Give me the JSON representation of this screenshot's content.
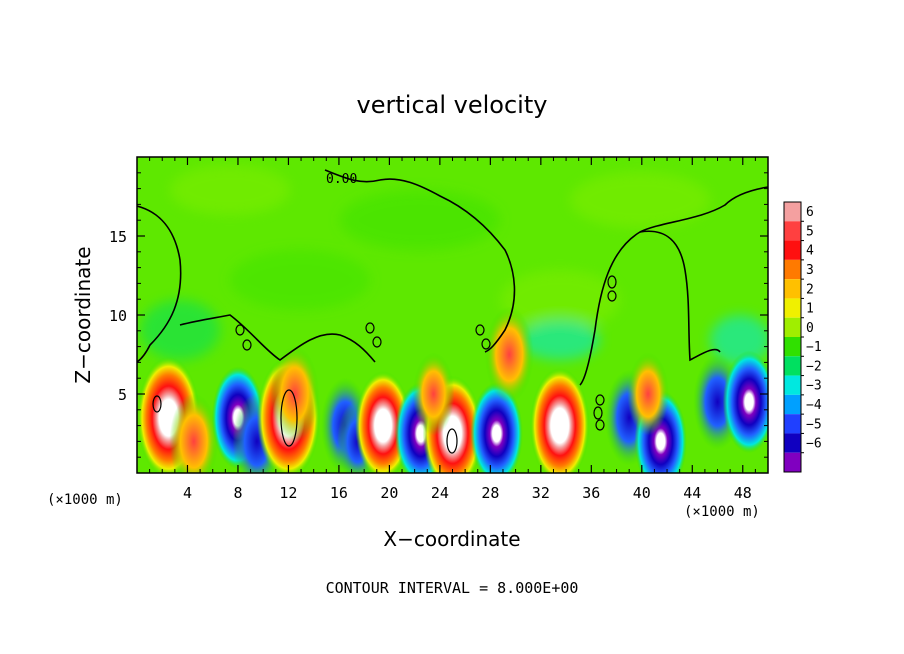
{
  "chart_data": {
    "type": "heatmap",
    "title": "vertical velocity",
    "xlabel": "X−coordinate",
    "ylabel": "Z−coordinate",
    "x_unit_left": "(×1000 m)",
    "x_unit_right": "(×1000 m)",
    "footer": "CONTOUR INTERVAL = 8.000E+00",
    "contour_label": "0.00",
    "xlim": [
      0,
      50
    ],
    "ylim": [
      0,
      20
    ],
    "x_ticks": [
      "4",
      "8",
      "12",
      "16",
      "20",
      "24",
      "28",
      "32",
      "36",
      "40",
      "44",
      "48"
    ],
    "y_ticks": [
      "5",
      "10",
      "15"
    ],
    "colorbar": {
      "range": [
        -6,
        6
      ],
      "labels": [
        "6",
        "5",
        "4",
        "3",
        "2",
        "1",
        "0",
        "−1",
        "−2",
        "−3",
        "−4",
        "−5",
        "−6"
      ],
      "colors": [
        "#f4a0a0",
        "#ff4040",
        "#ff1010",
        "#ff7a00",
        "#ffc000",
        "#f0f000",
        "#a0ee00",
        "#30e000",
        "#00e060",
        "#00e8e0",
        "#00a0ff",
        "#2040ff",
        "#1000c0",
        "#8000c0"
      ]
    },
    "cells": [
      {
        "x": 2.5,
        "z": 3.5,
        "w": 6,
        "kind": "up"
      },
      {
        "x": 4.5,
        "z": 2,
        "w": 4,
        "kind": "up"
      },
      {
        "x": 8,
        "z": 3.5,
        "w": -4.5,
        "kind": "down"
      },
      {
        "x": 9.5,
        "z": 2,
        "w": -4,
        "kind": "down"
      },
      {
        "x": 12,
        "z": 3.5,
        "w": 6,
        "kind": "up"
      },
      {
        "x": 12.5,
        "z": 5,
        "w": 4,
        "kind": "up"
      },
      {
        "x": 16.5,
        "z": 3,
        "w": -4,
        "kind": "down"
      },
      {
        "x": 17.5,
        "z": 2,
        "w": -3,
        "kind": "down"
      },
      {
        "x": 19.5,
        "z": 3,
        "w": 5,
        "kind": "up"
      },
      {
        "x": 22.5,
        "z": 2.5,
        "w": -4.5,
        "kind": "down"
      },
      {
        "x": 25,
        "z": 2.5,
        "w": 5.5,
        "kind": "up"
      },
      {
        "x": 23.5,
        "z": 5,
        "w": 3,
        "kind": "up"
      },
      {
        "x": 28.5,
        "z": 2.5,
        "w": -4.5,
        "kind": "down"
      },
      {
        "x": 29.5,
        "z": 7.5,
        "w": 4,
        "kind": "up"
      },
      {
        "x": 33.5,
        "z": 3,
        "w": 5.5,
        "kind": "up"
      },
      {
        "x": 39,
        "z": 3.5,
        "w": -4,
        "kind": "down"
      },
      {
        "x": 41.5,
        "z": 2,
        "w": -4.5,
        "kind": "down"
      },
      {
        "x": 40.5,
        "z": 5,
        "w": 3,
        "kind": "up"
      },
      {
        "x": 46,
        "z": 4.5,
        "w": -4,
        "kind": "down"
      },
      {
        "x": 48.5,
        "z": 4.5,
        "w": -4.5,
        "kind": "down"
      }
    ]
  }
}
